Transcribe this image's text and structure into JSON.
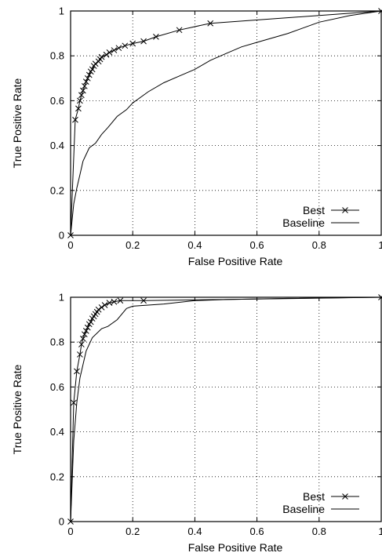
{
  "chart_data": [
    {
      "type": "line",
      "xlabel": "False Positive Rate",
      "ylabel": "True Positive Rate",
      "xlim": [
        0,
        1
      ],
      "ylim": [
        0,
        1
      ],
      "xticks": [
        "0",
        "0.2",
        "0.4",
        "0.6",
        "0.8",
        "1"
      ],
      "yticks": [
        "0",
        "0.2",
        "0.4",
        "0.6",
        "0.8",
        "1"
      ],
      "grid": true,
      "legend_position": "bottom-right",
      "series": [
        {
          "name": "Best",
          "marker": "x",
          "x": [
            0,
            0.015,
            0.025,
            0.03,
            0.035,
            0.04,
            0.045,
            0.05,
            0.055,
            0.06,
            0.065,
            0.07,
            0.075,
            0.08,
            0.09,
            0.095,
            0.1,
            0.115,
            0.125,
            0.14,
            0.155,
            0.175,
            0.2,
            0.235,
            0.275,
            0.35,
            0.45,
            1.0
          ],
          "y": [
            0,
            0.515,
            0.565,
            0.6,
            0.625,
            0.645,
            0.665,
            0.685,
            0.7,
            0.715,
            0.73,
            0.74,
            0.755,
            0.765,
            0.775,
            0.785,
            0.795,
            0.805,
            0.815,
            0.825,
            0.835,
            0.845,
            0.855,
            0.865,
            0.885,
            0.915,
            0.945,
            1.0
          ]
        },
        {
          "name": "Baseline",
          "x": [
            0,
            0.01,
            0.02,
            0.03,
            0.04,
            0.05,
            0.06,
            0.08,
            0.1,
            0.12,
            0.15,
            0.18,
            0.2,
            0.25,
            0.3,
            0.35,
            0.4,
            0.45,
            0.5,
            0.55,
            0.6,
            0.7,
            0.8,
            0.9,
            1.0
          ],
          "y": [
            0,
            0.14,
            0.21,
            0.27,
            0.33,
            0.36,
            0.39,
            0.41,
            0.45,
            0.48,
            0.53,
            0.56,
            0.59,
            0.64,
            0.68,
            0.71,
            0.74,
            0.78,
            0.81,
            0.84,
            0.86,
            0.9,
            0.95,
            0.98,
            1.0
          ]
        }
      ]
    },
    {
      "type": "line",
      "xlabel": "False Positive Rate",
      "ylabel": "True Positive Rate",
      "xlim": [
        0,
        1
      ],
      "ylim": [
        0,
        1
      ],
      "xticks": [
        "0",
        "0.2",
        "0.4",
        "0.6",
        "0.8",
        "1"
      ],
      "yticks": [
        "0",
        "0.2",
        "0.4",
        "0.6",
        "0.8",
        "1"
      ],
      "grid": true,
      "legend_position": "bottom-right",
      "series": [
        {
          "name": "Best",
          "marker": "x",
          "x": [
            0,
            0.01,
            0.02,
            0.03,
            0.035,
            0.04,
            0.045,
            0.05,
            0.055,
            0.06,
            0.065,
            0.07,
            0.075,
            0.08,
            0.085,
            0.09,
            0.1,
            0.11,
            0.125,
            0.14,
            0.16,
            0.235,
            1.0
          ],
          "y": [
            0,
            0.53,
            0.67,
            0.745,
            0.79,
            0.815,
            0.835,
            0.85,
            0.865,
            0.88,
            0.89,
            0.905,
            0.915,
            0.925,
            0.935,
            0.945,
            0.955,
            0.965,
            0.975,
            0.98,
            0.985,
            0.985,
            1.0
          ]
        },
        {
          "name": "Baseline",
          "x": [
            0,
            0.01,
            0.02,
            0.03,
            0.05,
            0.07,
            0.1,
            0.12,
            0.15,
            0.18,
            0.2,
            0.3,
            0.4,
            0.5,
            0.7,
            1.0
          ],
          "y": [
            0,
            0.36,
            0.53,
            0.64,
            0.76,
            0.82,
            0.86,
            0.87,
            0.9,
            0.95,
            0.96,
            0.97,
            0.985,
            0.99,
            0.995,
            1.0
          ]
        }
      ]
    }
  ]
}
